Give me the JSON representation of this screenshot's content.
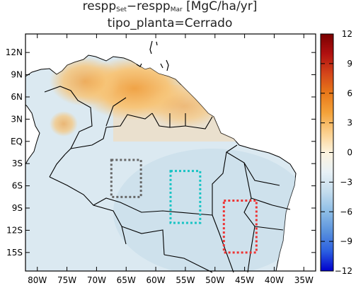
{
  "title": {
    "part1": "respp",
    "sub1": "Set",
    "minus": "−respp",
    "sub2": "Mar",
    "units": " [MgC/ha/yr]",
    "line2": "tipo_planta=Cerrado"
  },
  "map": {
    "lon_range": [
      -82,
      -33
    ],
    "lat_range": [
      -17.5,
      14.5
    ],
    "lon_ticks": [
      "80W",
      "75W",
      "70W",
      "65W",
      "60W",
      "55W",
      "50W",
      "45W",
      "40W",
      "35W"
    ],
    "lat_ticks": [
      "12N",
      "9N",
      "6N",
      "3N",
      "EQ",
      "3S",
      "6S",
      "9S",
      "12S",
      "15S"
    ],
    "boxes": [
      {
        "name": "grey-box",
        "lon": [
          -67.5,
          -62.5
        ],
        "lat": [
          -7.5,
          -2.5
        ],
        "color": "#666666"
      },
      {
        "name": "cyan-box",
        "lon": [
          -57.5,
          -52.5
        ],
        "lat": [
          -11,
          -4
        ],
        "color": "#18c4c4"
      },
      {
        "name": "red-box",
        "lon": [
          -48.5,
          -43
        ],
        "lat": [
          -15,
          -8
        ],
        "color": "#ee3333"
      }
    ]
  },
  "colorbar": {
    "ticks": [
      "12",
      "9",
      "6",
      "3",
      "0",
      "-3",
      "-6",
      "-9",
      "-12"
    ],
    "range": [
      -12,
      12
    ],
    "colors": [
      "#0000cd",
      "#2b5fe0",
      "#5a92dd",
      "#8dbde6",
      "#c3dced",
      "#e8f1f6",
      "#fdf3de",
      "#fbcf8c",
      "#f4a23a",
      "#e8791a",
      "#d4451a",
      "#b01010",
      "#7a0000"
    ]
  }
}
